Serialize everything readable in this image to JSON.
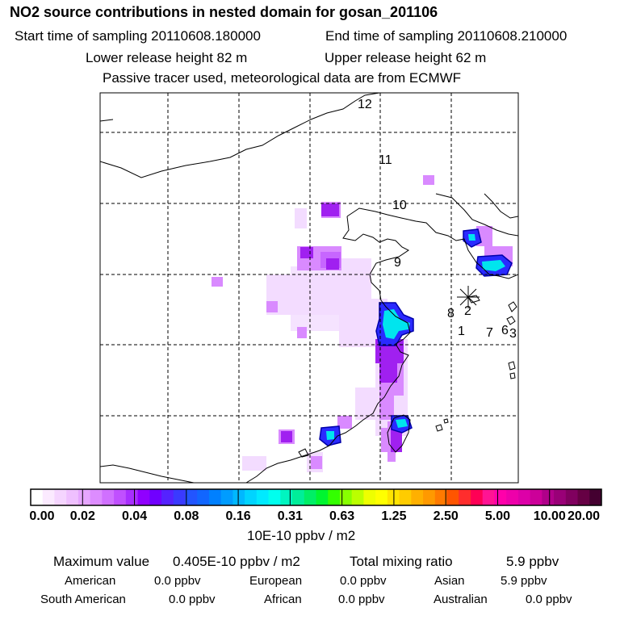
{
  "header": {
    "title": "NO2 source contributions in nested domain for gosan_201106",
    "start_label": "Start time of sampling 20110608.180000",
    "end_label": "End time of sampling 20110608.210000",
    "lower_label": "Lower release height   82 m",
    "upper_label": "Upper release height   62 m",
    "note": "Passive tracer used, meteorological data are from ECMWF"
  },
  "map": {
    "trajectory_labels": [
      "12",
      "11",
      "10",
      "9",
      "8",
      "2",
      "1",
      "7",
      "6",
      "3"
    ],
    "colors": {
      "land_line": "#000000",
      "grid_line": "#000000",
      "plume_light": "#f2d6ff",
      "plume_mid": "#cc66ff",
      "plume_strong": "#9900ee",
      "plume_blue": "#2233ff",
      "plume_cyan": "#00ddee"
    }
  },
  "colorbar": {
    "colors": [
      "#ffffff",
      "#fbeaff",
      "#f5d5ff",
      "#efc0ff",
      "#e6a6ff",
      "#dd8cff",
      "#d070ff",
      "#c050ff",
      "#a82eff",
      "#9000ff",
      "#7000ff",
      "#5522ff",
      "#3a3aff",
      "#2255ff",
      "#1166ff",
      "#0080ff",
      "#009cff",
      "#00b8ff",
      "#00d4ff",
      "#00eaff",
      "#00ffee",
      "#00f5c0",
      "#00ee99",
      "#00ee66",
      "#00f530",
      "#33ff00",
      "#88ff00",
      "#bbff00",
      "#eeff00",
      "#ffff00",
      "#ffe400",
      "#ffcc00",
      "#ffb000",
      "#ff9900",
      "#ff7a00",
      "#ff5500",
      "#ff2d2d",
      "#ff0055",
      "#ff1493",
      "#ff00aa",
      "#ee00aa",
      "#dd00a8",
      "#cc0099",
      "#b0008a",
      "#990077",
      "#80005f",
      "#660044",
      "#440030"
    ],
    "ticks": [
      "0.00",
      "0.02",
      "0.04",
      "0.08",
      "0.16",
      "0.31",
      "0.63",
      "1.25",
      "2.50",
      "5.00",
      "10.00",
      "20.00"
    ],
    "unit": "10E-10 ppbv / m2"
  },
  "footer": {
    "max_label": "Maximum value",
    "max_value": "0.405E-10 ppbv / m2",
    "total_label": "Total mixing ratio",
    "total_value": "5.9 ppbv",
    "regions": [
      {
        "name": "American",
        "value": "0.0 ppbv"
      },
      {
        "name": "European",
        "value": "0.0 ppbv"
      },
      {
        "name": "Asian",
        "value": "5.9 ppbv"
      },
      {
        "name": "South American",
        "value": "0.0 ppbv"
      },
      {
        "name": "African",
        "value": "0.0 ppbv"
      },
      {
        "name": "Australian",
        "value": "0.0 ppbv"
      }
    ]
  }
}
